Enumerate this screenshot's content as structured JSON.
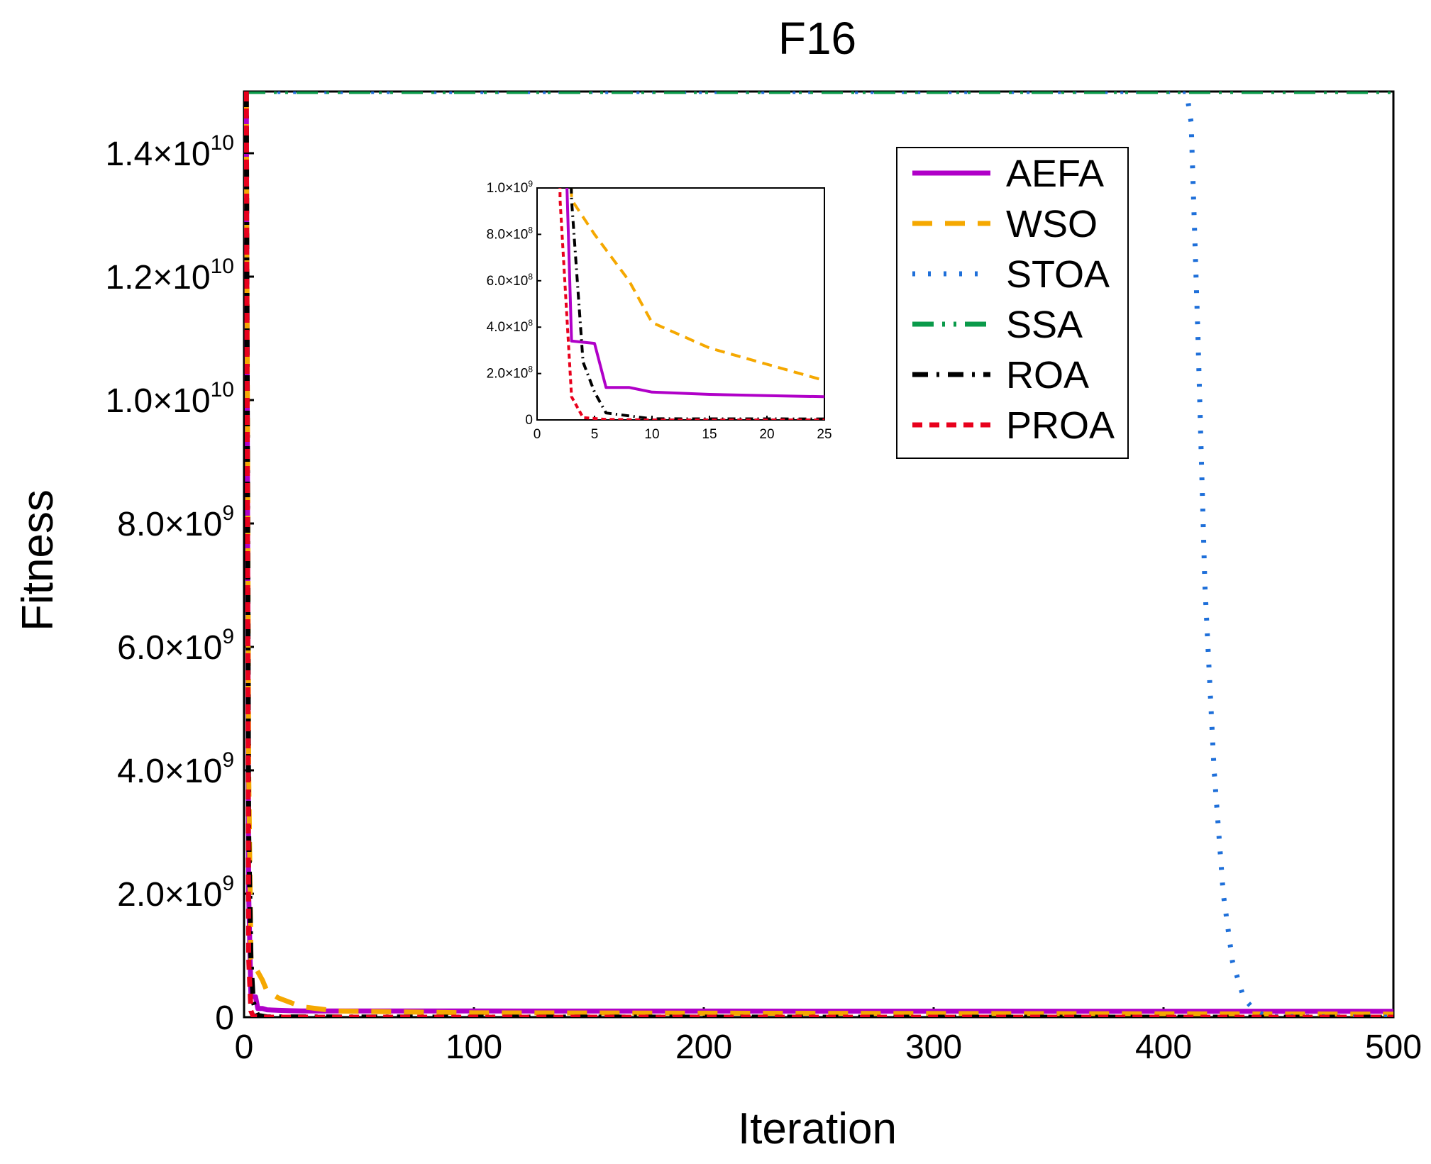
{
  "chart_data": {
    "type": "line",
    "title": "F16",
    "xlabel": "Iteration",
    "ylabel": "Fitness",
    "xlim": [
      0,
      500
    ],
    "ylim": [
      0,
      15000000000
    ],
    "x_ticks": [
      0,
      100,
      200,
      300,
      400,
      500
    ],
    "x_tick_labels": [
      "0",
      "100",
      "200",
      "300",
      "400",
      "500"
    ],
    "y_ticks": [
      0,
      2000000000,
      4000000000,
      6000000000,
      8000000000,
      10000000000,
      12000000000,
      14000000000
    ],
    "y_tick_labels": [
      {
        "mantissa": "0",
        "exp": ""
      },
      {
        "mantissa": "2.0×10",
        "exp": "9"
      },
      {
        "mantissa": "4.0×10",
        "exp": "9"
      },
      {
        "mantissa": "6.0×10",
        "exp": "9"
      },
      {
        "mantissa": "8.0×10",
        "exp": "9"
      },
      {
        "mantissa": "1.0×10",
        "exp": "10"
      },
      {
        "mantissa": "1.2×10",
        "exp": "10"
      },
      {
        "mantissa": "1.4×10",
        "exp": "10"
      }
    ],
    "legend_position": "top-right",
    "series": [
      {
        "name": "AEFA",
        "color": "#b000c8",
        "dash": "solid",
        "x": [
          1,
          2,
          3,
          5,
          6,
          8,
          10,
          15,
          20,
          25,
          100,
          500
        ],
        "y": [
          15000000000,
          2000000000,
          340000000,
          330000000,
          140000000,
          140000000,
          120000000,
          110000000,
          105000000,
          100000000,
          100000000,
          95000000
        ]
      },
      {
        "name": "WSO",
        "color": "#f5a800",
        "dash": "dashed",
        "x": [
          1,
          2,
          3,
          5,
          8,
          10,
          15,
          20,
          25,
          40,
          100,
          500
        ],
        "y": [
          15000000000,
          4000000000,
          950000000,
          800000000,
          600000000,
          420000000,
          310000000,
          240000000,
          170000000,
          100000000,
          70000000,
          50000000
        ]
      },
      {
        "name": "STOA",
        "color": "#1e6fd9",
        "dash": "dotted",
        "x": [
          1,
          410,
          412,
          415,
          418,
          422,
          426,
          430,
          435,
          440,
          445,
          500
        ],
        "y": [
          15000000000,
          15000000000,
          14500000000,
          11000000000,
          7000000000,
          4000000000,
          2000000000,
          900000000,
          300000000,
          100000000,
          10000000,
          0
        ]
      },
      {
        "name": "SSA",
        "color": "#0a9a4a",
        "dash": "dashdotdot",
        "x": [
          0,
          500
        ],
        "y": [
          15000000000,
          15000000000
        ]
      },
      {
        "name": "ROA",
        "color": "#000000",
        "dash": "dashdot",
        "x": [
          1,
          2,
          3,
          4,
          5,
          6,
          10,
          100,
          500
        ],
        "y": [
          15000000000,
          3000000000,
          950000000,
          250000000,
          120000000,
          30000000,
          5000000,
          1000000,
          0
        ]
      },
      {
        "name": "PROA",
        "color": "#e8001c",
        "dash": "shortdash",
        "x": [
          1,
          2,
          3,
          4,
          6,
          10,
          500
        ],
        "y": [
          15000000000,
          950000000,
          100000000,
          10000000,
          2000000,
          0,
          0
        ]
      }
    ],
    "inset": {
      "xlim": [
        0,
        25
      ],
      "ylim": [
        0,
        1000000000
      ],
      "x_ticks": [
        0,
        5,
        10,
        15,
        20,
        25
      ],
      "x_tick_labels": [
        "0",
        "5",
        "10",
        "15",
        "20",
        "25"
      ],
      "y_ticks": [
        0,
        200000000,
        400000000,
        600000000,
        800000000,
        1000000000
      ],
      "y_tick_labels": [
        {
          "mantissa": "0",
          "exp": ""
        },
        {
          "mantissa": "2.0×10",
          "exp": "8"
        },
        {
          "mantissa": "4.0×10",
          "exp": "8"
        },
        {
          "mantissa": "6.0×10",
          "exp": "8"
        },
        {
          "mantissa": "8.0×10",
          "exp": "8"
        },
        {
          "mantissa": "1.0×10",
          "exp": "9"
        }
      ]
    }
  }
}
